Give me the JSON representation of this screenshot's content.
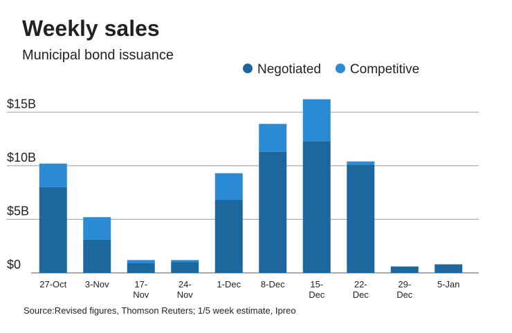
{
  "chart_data": {
    "type": "stacked_bar",
    "title": "Weekly sales",
    "subtitle": "Municipal bond issuance",
    "source": "Source:Revised figures, Thomson Reuters; 1/5 week estimate, Ipreo",
    "categories": [
      "27-Oct",
      "3-Nov",
      "17-Nov",
      "24-Nov",
      "1-Dec",
      "8-Dec",
      "15-Dec",
      "22-Dec",
      "29-Dec",
      "5-Jan"
    ],
    "series": [
      {
        "name": "Negotiated",
        "color": "#1c679e",
        "values": [
          8.0,
          3.1,
          0.9,
          1.0,
          6.8,
          11.3,
          12.3,
          10.1,
          0.6,
          0.8
        ]
      },
      {
        "name": "Competitive",
        "color": "#2a8bd4",
        "values": [
          2.2,
          2.1,
          0.3,
          0.2,
          2.5,
          2.6,
          3.9,
          0.3,
          0.0,
          0.0
        ]
      }
    ],
    "ylim": [
      0,
      16.5
    ],
    "yticks": [
      {
        "value": 0,
        "label": "$0"
      },
      {
        "value": 5,
        "label": "$5B"
      },
      {
        "value": 10,
        "label": "$10B"
      },
      {
        "value": 15,
        "label": "$15B"
      }
    ],
    "grid": true
  }
}
